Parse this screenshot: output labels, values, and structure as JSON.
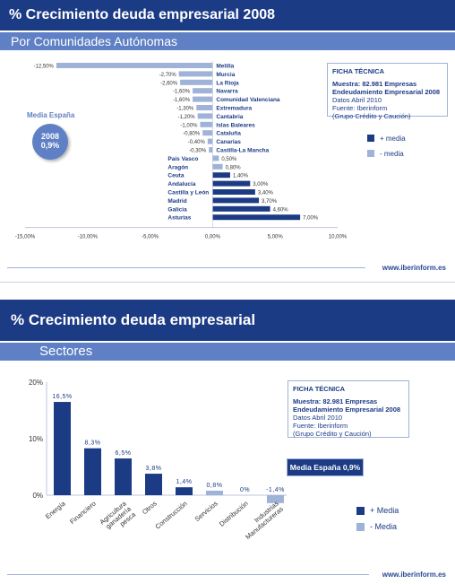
{
  "top": {
    "title": "% Crecimiento deuda empresarial 2008",
    "subtitle": "Por Comunidades Autónomas",
    "footer": "www.iberinform.es",
    "media_label": "Media España",
    "media_year": "2008",
    "media_value": "0,9%",
    "ficha": {
      "heading": "FICHA TÉCNICA",
      "line1": "Muestra: 82.981 Empresas",
      "line2": "Endeudamiento Empresarial 2008",
      "line3": "Datos Abril 2010",
      "line4": "Fuente: Iberinform",
      "line5": "(Grupo Crédito y Caución)"
    },
    "legend_above": "+ media",
    "legend_below": "- media"
  },
  "bottom": {
    "title": "% Crecimiento deuda empresarial",
    "subtitle": "Sectores",
    "footer": "www.iberinform.es",
    "media_box": "Media España 0,9%",
    "ficha": {
      "heading": "FICHA TÉCNICA",
      "line1": "Muestra: 82.981 Empresas",
      "line2": "Endeudamiento Empresarial 2008",
      "line3": "Datos Abril 2010",
      "line4": "Fuente: Iberinform",
      "line5": "(Grupo Crédito y Caución)"
    },
    "legend_above": "+ Media",
    "legend_below": "- Media"
  },
  "colors": {
    "above": "#1c3b85",
    "below": "#9fb2d8",
    "title_bg": "#1c3b85",
    "sub_bg": "#5f80c4"
  },
  "chart_data": [
    {
      "type": "bar",
      "orientation": "horizontal",
      "categories": [
        "Melilla",
        "Murcia",
        "La Rioja",
        "Navarra",
        "Comunidad Valenciana",
        "Extremadura",
        "Cantabria",
        "Islas Baleares",
        "Cataluña",
        "Canarias",
        "Castilla-La Mancha",
        "País Vasco",
        "Aragón",
        "Ceuta",
        "Andalucía",
        "Castilla y León",
        "Madrid",
        "Galicia",
        "Asturias"
      ],
      "values": [
        -12.5,
        -2.7,
        -2.6,
        -1.6,
        -1.6,
        -1.3,
        -1.2,
        -1.0,
        -0.8,
        -0.4,
        -0.3,
        0.5,
        0.8,
        1.4,
        3.0,
        3.4,
        3.7,
        4.6,
        7.0
      ],
      "data_labels": [
        "-12,50%",
        "-2,70%",
        "-2,60%",
        "-1,60%",
        "-1,60%",
        "-1,30%",
        "-1,20%",
        "-1,00%",
        "-0,80%",
        "-0,40%",
        "-0,30%",
        "0,50%",
        "0,80%",
        "1,40%",
        "3,00%",
        "3,40%",
        "3,70%",
        "4,60%",
        "7,00%"
      ],
      "xlim": [
        -15,
        10
      ],
      "xticks": [
        -15,
        -10,
        -5,
        0,
        5,
        10
      ],
      "xtick_labels": [
        "-15,00%",
        "-10,00%",
        "-5,00%",
        "0,00%",
        "5,00%",
        "10,00%"
      ],
      "reference_value": 0.9
    },
    {
      "type": "bar",
      "orientation": "vertical",
      "categories": [
        "Energía",
        "Financiero",
        "Agricultura ganadería pesca",
        "Otros",
        "Construcción",
        "Servicios",
        "Distribución",
        "Industrias Manufactureras"
      ],
      "category_lines": [
        [
          "Energía"
        ],
        [
          "Financiero"
        ],
        [
          "Agricultura",
          "ganadería",
          "pesca"
        ],
        [
          "Otros"
        ],
        [
          "Construcción"
        ],
        [
          "Servicios"
        ],
        [
          "Distribución"
        ],
        [
          "Industrias",
          "Manufactureras"
        ]
      ],
      "values": [
        16.5,
        8.3,
        6.5,
        3.8,
        1.4,
        0.8,
        0,
        -1.4
      ],
      "data_labels": [
        "16,5%",
        "8,3%",
        "6,5%",
        "3,8%",
        "1,4%",
        "0,8%",
        "0%",
        "-1,4%"
      ],
      "ylim": [
        0,
        20
      ],
      "yticks": [
        0,
        10,
        20
      ],
      "ytick_labels": [
        "0%",
        "10%",
        "20%"
      ],
      "reference_value": 0.9
    }
  ]
}
